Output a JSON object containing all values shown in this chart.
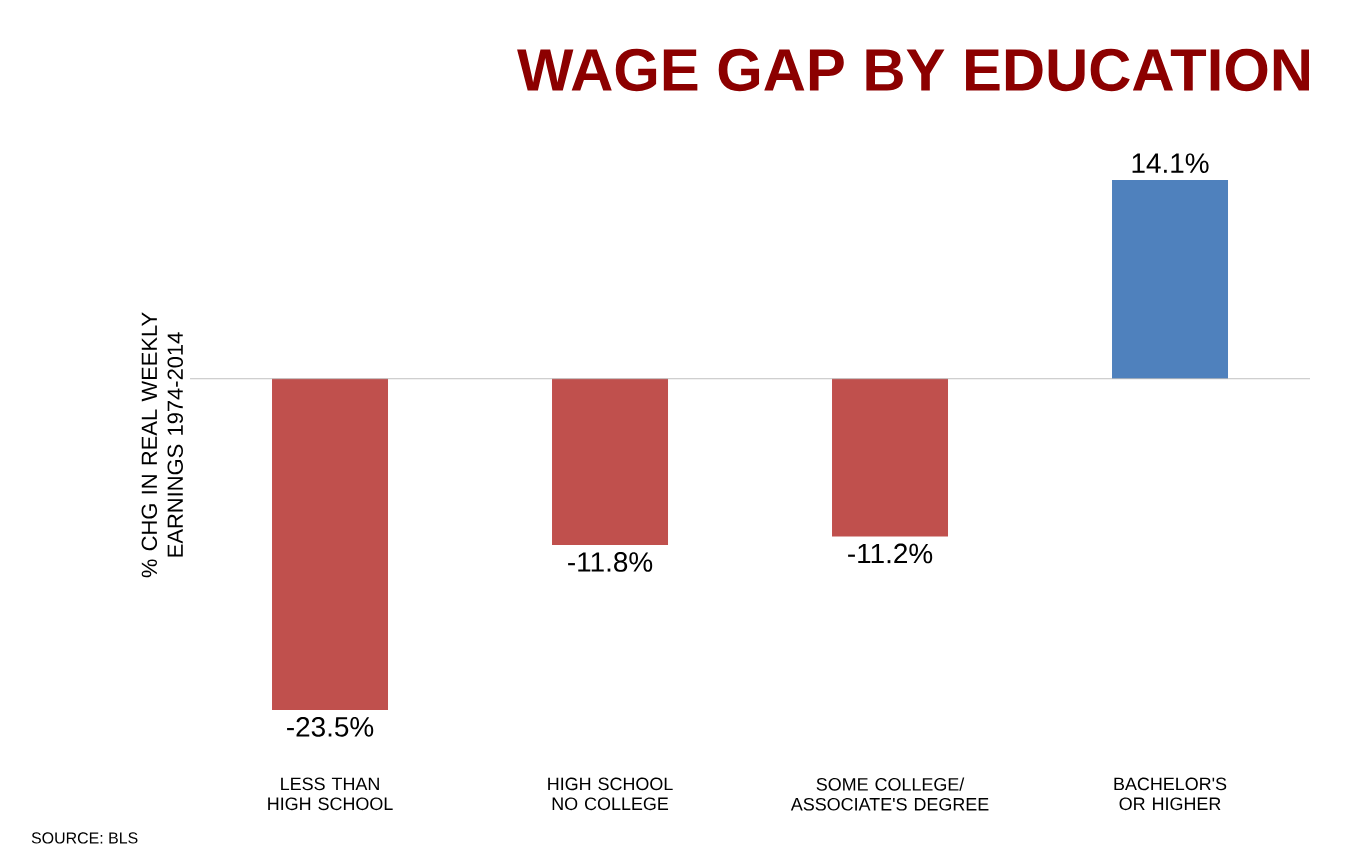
{
  "chart_data": {
    "type": "bar",
    "title": "WAGE GAP BY EDUCATION",
    "ylabel": "% CHG IN REAL WEEKLY EARNINGS 1974-2014",
    "categories": [
      "LESS THAN HIGH SCHOOL",
      "HIGH SCHOOL NO COLLEGE",
      "SOME COLLEGE/ ASSOCIATE'S DEGREE",
      "BACHELOR'S OR HIGHER"
    ],
    "values": [
      -23.5,
      -11.8,
      -11.2,
      14.1
    ],
    "colors": [
      "#c0504d",
      "#c0504d",
      "#c0504d",
      "#4f81bd"
    ],
    "value_labels": [
      "-23.5%",
      "-11.8%",
      "-11.2%",
      "14.1%"
    ],
    "tick_labels": "x",
    "annotations": [
      "SOURCE: BLS"
    ]
  }
}
